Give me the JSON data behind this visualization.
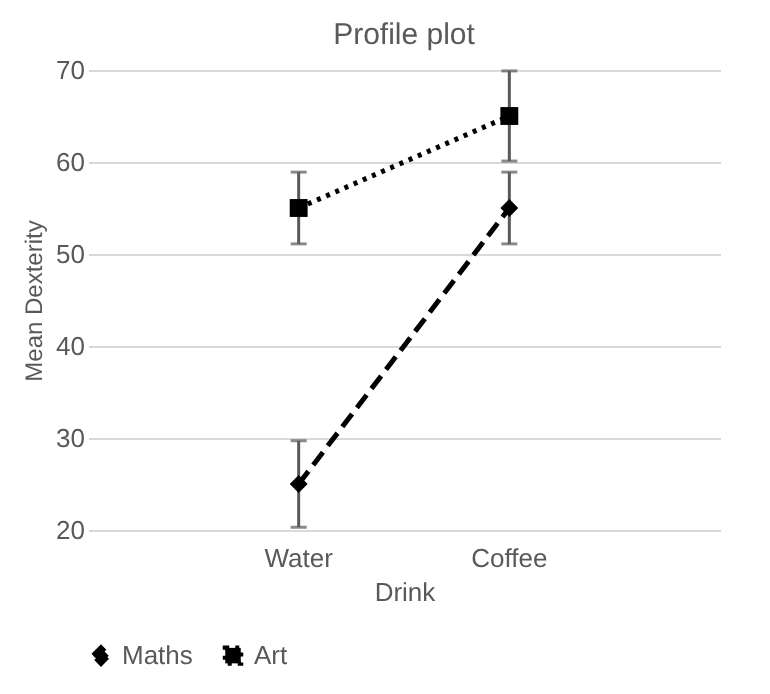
{
  "chart_data": {
    "type": "line",
    "title": "Profile plot",
    "xlabel": "Drink",
    "ylabel": "Mean Dexterity",
    "categories": [
      "Water",
      "Coffee"
    ],
    "series": [
      {
        "name": "Maths",
        "color": "#000000",
        "values": [
          25,
          55
        ],
        "errors": [
          4.7,
          3.9
        ],
        "marker": "diamond",
        "line_style": "dashed"
      },
      {
        "name": "Art",
        "color": "#000000",
        "values": [
          55,
          65
        ],
        "errors": [
          3.9,
          4.9
        ],
        "marker": "square",
        "line_style": "dotted"
      }
    ],
    "ylim": [
      20,
      70
    ],
    "yticks": [
      20,
      30,
      40,
      50,
      60,
      70
    ],
    "grid": "y",
    "legend": "bottom"
  }
}
